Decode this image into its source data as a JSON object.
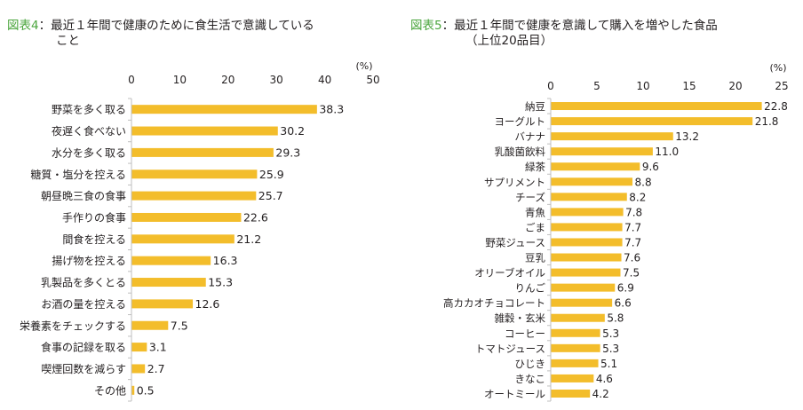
{
  "chart_data": [
    {
      "type": "bar",
      "orientation": "horizontal",
      "figure_label": "図表4",
      "separator": "：",
      "title_line1": "最近１年間で健康のために食生活で意識している",
      "title_line2": "こと",
      "unit": "(%)",
      "xlim": [
        0,
        50
      ],
      "ticks": [
        "0",
        "10",
        "20",
        "30",
        "40",
        "50"
      ],
      "categories": [
        "野菜を多く取る",
        "夜遅く食べない",
        "水分を多く取る",
        "糖質・塩分を控える",
        "朝昼晩三食の食事",
        "手作りの食事",
        "間食を控える",
        "揚げ物を控える",
        "乳製品を多くとる",
        "お酒の量を控える",
        "栄養素をチェックする",
        "食事の記録を取る",
        "喫煙回数を減らす",
        "その他"
      ],
      "values": [
        38.3,
        30.2,
        29.3,
        25.9,
        25.7,
        22.6,
        21.2,
        16.3,
        15.3,
        12.6,
        7.5,
        3.1,
        2.7,
        0.5
      ],
      "bar_color": "#f3bd2b"
    },
    {
      "type": "bar",
      "orientation": "horizontal",
      "figure_label": "図表5",
      "separator": "：",
      "title_line1": "最近１年間で健康を意識して購入を増やした食品",
      "title_line2": "（上位20品目）",
      "unit": "(%)",
      "xlim": [
        0,
        25
      ],
      "ticks": [
        "0",
        "5",
        "10",
        "15",
        "20",
        "25"
      ],
      "categories": [
        "納豆",
        "ヨーグルト",
        "バナナ",
        "乳酸菌飲料",
        "緑茶",
        "サプリメント",
        "チーズ",
        "青魚",
        "ごま",
        "野菜ジュース",
        "豆乳",
        "オリーブオイル",
        "りんご",
        "高カカオチョコレート",
        "雑穀・玄米",
        "コーヒー",
        "トマトジュース",
        "ひじき",
        "きなこ",
        "オートミール"
      ],
      "values": [
        22.8,
        21.8,
        13.2,
        11.0,
        9.6,
        8.8,
        8.2,
        7.8,
        7.7,
        7.7,
        7.6,
        7.5,
        6.9,
        6.6,
        5.8,
        5.3,
        5.3,
        5.1,
        4.6,
        4.2
      ],
      "bar_color": "#f3bd2b"
    }
  ]
}
